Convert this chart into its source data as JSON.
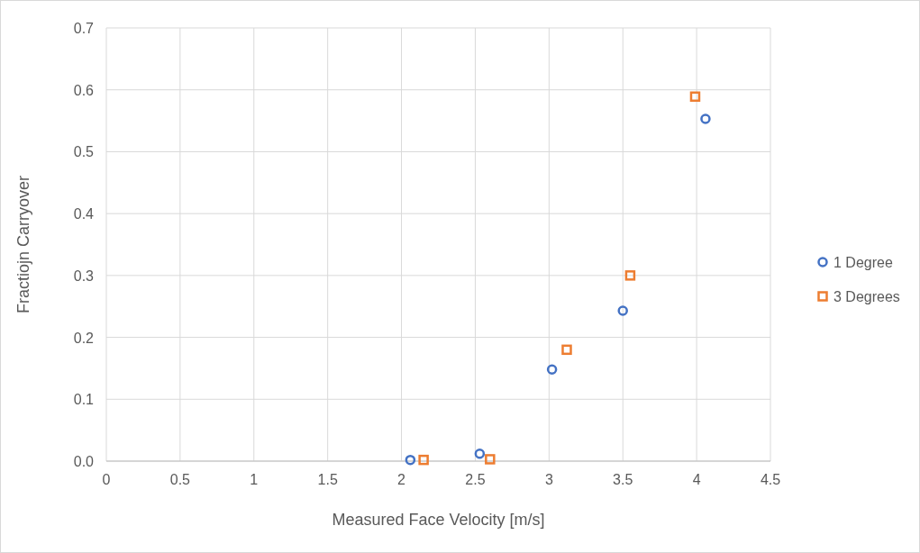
{
  "chart_data": {
    "type": "scatter",
    "xlabel": "Measured Face Velocity [m/s]",
    "ylabel": "Fractiojn Carryover",
    "xlim": [
      0,
      4.5
    ],
    "xticks": [
      0,
      0.5,
      1,
      1.5,
      2,
      2.5,
      3,
      3.5,
      4,
      4.5
    ],
    "ylim": [
      0,
      0.7
    ],
    "yticks": [
      {
        "value": 0,
        "label": "0.0"
      },
      0.1,
      0.2,
      0.3,
      0.4,
      0.5,
      0.6,
      0.7
    ],
    "grid": true,
    "legend": "right",
    "series": [
      {
        "name": "1 Degree",
        "color": "#4472c4",
        "marker": "circle",
        "x": [
          2.06,
          2.53,
          3.02,
          3.5,
          4.06
        ],
        "values": [
          0.002,
          0.012,
          0.148,
          0.243,
          0.553
        ]
      },
      {
        "name": "3 Degrees",
        "color": "#ed7d31",
        "marker": "square",
        "x": [
          2.15,
          2.6,
          3.12,
          3.55,
          3.99
        ],
        "values": [
          0.002,
          0.003,
          0.18,
          0.3,
          0.589
        ]
      }
    ]
  }
}
